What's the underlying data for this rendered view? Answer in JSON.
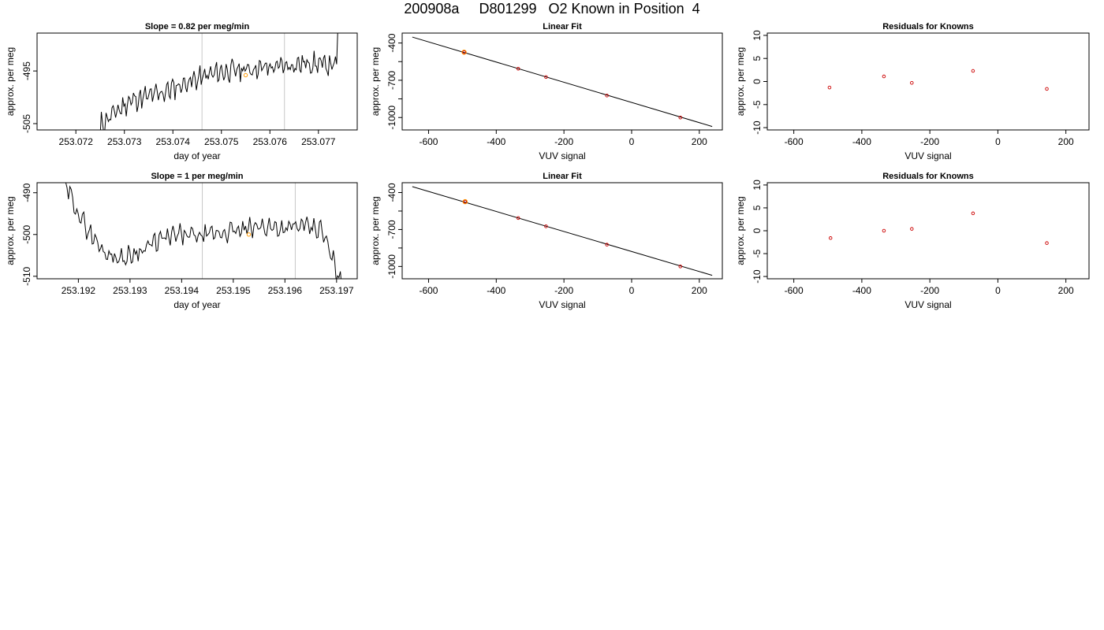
{
  "page": {
    "title": "200908a     D801299   O2 Known in Position  4"
  },
  "colors": {
    "trace": "#000000",
    "guide": "#c8c8c8",
    "highlight": "#ff9900",
    "point": "#cc0000",
    "fitline": "#000000"
  },
  "chart_data": [
    {
      "id": "trace1",
      "type": "line",
      "title": "Slope =  0.82  per meg/min",
      "xlabel": "day of year",
      "ylabel": "approx. per meg",
      "xlim": [
        253.0712,
        253.0778
      ],
      "ylim": [
        -506.2,
        -487.8
      ],
      "xticks": [
        253.072,
        253.073,
        253.074,
        253.075,
        253.076,
        253.077
      ],
      "xtick_labels": [
        "253.072",
        "253.073",
        "253.074",
        "253.075",
        "253.076",
        "253.077"
      ],
      "yticks": [
        -505,
        -495
      ],
      "ytick_labels": [
        "-505",
        "-495"
      ],
      "vlines": [
        253.0746,
        253.0763
      ],
      "highlight_point": [
        253.0755,
        -495.8
      ],
      "x_range": [
        253.0725,
        253.0774
      ],
      "baseline": [
        -505.2,
        -500.7,
        -499.3,
        -497.0,
        -495.2,
        -494.6,
        -494.2,
        -493.5,
        -494.0
      ],
      "seed": 11,
      "start_y": -507.5,
      "end_y": -487.0,
      "noise": 1.2
    },
    {
      "id": "fit1",
      "type": "scatter",
      "title": "Linear Fit",
      "xlabel": "VUV signal",
      "ylabel": "approx. per meg",
      "xlim": [
        -678,
        268
      ],
      "ylim": [
        -1100,
        -320
      ],
      "xticks": [
        -600,
        -400,
        -200,
        0,
        200
      ],
      "xtick_labels": [
        "-600",
        "-400",
        "-200",
        "0",
        "200"
      ],
      "yticks": [
        -1000,
        -700,
        -400
      ],
      "ytick_labels": [
        "-1000",
        "-700",
        "-400"
      ],
      "minor_yticks": [
        -550,
        -850
      ],
      "points": [
        [
          -495,
          -474
        ],
        [
          -335,
          -607
        ],
        [
          -253,
          -674
        ],
        [
          -73,
          -823
        ],
        [
          144,
          -1000
        ]
      ],
      "highlight_point": [
        -495,
        -474
      ],
      "fit_line": [
        [
          -648,
          -352
        ],
        [
          238,
          -1072
        ]
      ]
    },
    {
      "id": "resid1",
      "type": "scatter",
      "title": "Residuals for Knowns",
      "xlabel": "VUV signal",
      "ylabel": "approx. per meg",
      "xlim": [
        -678,
        268
      ],
      "ylim": [
        -10.5,
        10.5
      ],
      "xticks": [
        -600,
        -400,
        -200,
        0,
        200
      ],
      "xtick_labels": [
        "-600",
        "-400",
        "-200",
        "0",
        "200"
      ],
      "yticks": [
        -10,
        -5,
        0,
        5,
        10
      ],
      "ytick_labels": [
        "-10",
        "-5",
        "0",
        "5",
        "10"
      ],
      "points": [
        [
          -495,
          -1.3
        ],
        [
          -335,
          1.1
        ],
        [
          -253,
          -0.3
        ],
        [
          -73,
          2.3
        ],
        [
          144,
          -1.6
        ]
      ]
    },
    {
      "id": "trace2",
      "type": "line",
      "title": "Slope =  1  per meg/min",
      "xlabel": "day of year",
      "ylabel": "approx. per meg",
      "xlim": [
        253.1912,
        253.1974
      ],
      "ylim": [
        -510.6,
        -487.6
      ],
      "xticks": [
        253.192,
        253.193,
        253.194,
        253.195,
        253.196,
        253.197
      ],
      "xtick_labels": [
        "253.192",
        "253.193",
        "253.194",
        "253.195",
        "253.196",
        "253.197"
      ],
      "yticks": [
        -510,
        -500,
        -490
      ],
      "ytick_labels": [
        "-510",
        "-500",
        "-490"
      ],
      "vlines": [
        253.1944,
        253.1962
      ],
      "highlight_point": [
        253.1953,
        -500.0
      ],
      "x_range": [
        253.1917,
        253.1971
      ],
      "baseline": [
        -487.0,
        -497.0,
        -504.0,
        -506.0,
        -503.5,
        -501.0,
        -500.0,
        -500.5,
        -499.5,
        -499.0,
        -498.0,
        -498.5,
        -498.0,
        -499.0,
        -512.0
      ],
      "seed": 29,
      "start_y": -486.0,
      "end_y": -512.5,
      "noise": 1.4
    },
    {
      "id": "fit2",
      "type": "scatter",
      "title": "Linear Fit",
      "xlabel": "VUV signal",
      "ylabel": "approx. per meg",
      "xlim": [
        -678,
        268
      ],
      "ylim": [
        -1100,
        -320
      ],
      "xticks": [
        -600,
        -400,
        -200,
        0,
        200
      ],
      "xtick_labels": [
        "-600",
        "-400",
        "-200",
        "0",
        "200"
      ],
      "yticks": [
        -1000,
        -700,
        -400
      ],
      "ytick_labels": [
        "-1000",
        "-700",
        "-400"
      ],
      "minor_yticks": [
        -550,
        -850
      ],
      "points": [
        [
          -492,
          -474
        ],
        [
          -335,
          -607
        ],
        [
          -253,
          -674
        ],
        [
          -73,
          -823
        ],
        [
          144,
          -1000
        ]
      ],
      "highlight_point": [
        -492,
        -474
      ],
      "fit_line": [
        [
          -648,
          -352
        ],
        [
          238,
          -1072
        ]
      ]
    },
    {
      "id": "resid2",
      "type": "scatter",
      "title": "Residuals for Knowns",
      "xlabel": "VUV signal",
      "ylabel": "approx. per meg",
      "xlim": [
        -678,
        268
      ],
      "ylim": [
        -10.5,
        10.5
      ],
      "xticks": [
        -600,
        -400,
        -200,
        0,
        200
      ],
      "xtick_labels": [
        "-600",
        "-400",
        "-200",
        "0",
        "200"
      ],
      "yticks": [
        -10,
        -5,
        0,
        5,
        10
      ],
      "ytick_labels": [
        "-10",
        "-5",
        "0",
        "5",
        "10"
      ],
      "points": [
        [
          -492,
          -1.6
        ],
        [
          -335,
          0.0
        ],
        [
          -253,
          0.4
        ],
        [
          -73,
          3.8
        ],
        [
          144,
          -2.7
        ]
      ]
    }
  ]
}
